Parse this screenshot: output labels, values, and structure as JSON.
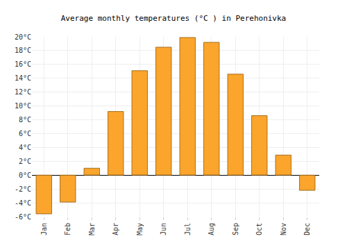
{
  "chart_data": {
    "type": "bar",
    "title": "Average monthly temperatures (°C ) in Perehonivka",
    "categories": [
      "Jan",
      "Feb",
      "Mar",
      "Apr",
      "May",
      "Jun",
      "Jul",
      "Aug",
      "Sep",
      "Oct",
      "Nov",
      "Dec"
    ],
    "values": [
      -5.6,
      -3.9,
      1.0,
      9.2,
      15.1,
      18.5,
      19.9,
      19.2,
      14.6,
      8.6,
      2.9,
      -2.2
    ],
    "color": "#fba52c",
    "ylim": [
      -6,
      20
    ],
    "yticks": [
      {
        "value": -6,
        "label": "-6°C"
      },
      {
        "value": -4,
        "label": "-4°C"
      },
      {
        "value": -2,
        "label": "-2°C"
      },
      {
        "value": 0,
        "label": "0°C"
      },
      {
        "value": 2,
        "label": "2°C"
      },
      {
        "value": 4,
        "label": "4°C"
      },
      {
        "value": 6,
        "label": "6°C"
      },
      {
        "value": 8,
        "label": "8°C"
      },
      {
        "value": 10,
        "label": "10°C"
      },
      {
        "value": 12,
        "label": "12°C"
      },
      {
        "value": 14,
        "label": "14°C"
      },
      {
        "value": 16,
        "label": "16°C"
      },
      {
        "value": 18,
        "label": "18°C"
      },
      {
        "value": 20,
        "label": "20°C"
      }
    ],
    "grid": true
  }
}
